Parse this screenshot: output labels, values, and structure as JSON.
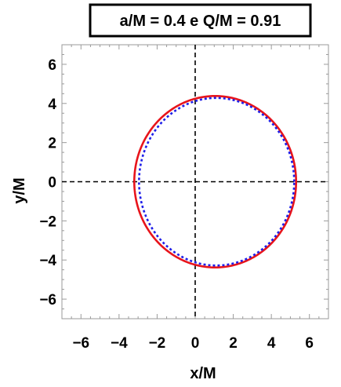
{
  "chart_data": {
    "type": "line",
    "title": "a/M = 0.4 e Q/M = 0.91",
    "xlabel": "x/M",
    "ylabel": "y/M",
    "xlim": [
      -7,
      7
    ],
    "ylim": [
      -7,
      7
    ],
    "x_ticks": [
      -6,
      -4,
      -2,
      0,
      2,
      4,
      6
    ],
    "y_ticks": [
      -6,
      -4,
      -2,
      0,
      2,
      4,
      6
    ],
    "x_tick_labels": [
      "−6",
      "−4",
      "−2",
      "0",
      "2",
      "4",
      "6"
    ],
    "y_tick_labels": [
      "−6",
      "−4",
      "−2",
      "0",
      "2",
      "4",
      "6"
    ],
    "reference_lines": [
      {
        "axis": "x",
        "value": 0,
        "style": "dashed",
        "color": "#000000"
      },
      {
        "axis": "y",
        "value": 0,
        "style": "dashed",
        "color": "#000000"
      }
    ],
    "series": [
      {
        "style": "solid",
        "color": "#e8141b",
        "shape": "closed curve",
        "center": [
          1.05,
          0
        ],
        "x_range": [
          -3.2,
          5.3
        ],
        "y_range": [
          -4.38,
          4.38
        ]
      },
      {
        "style": "dotted",
        "color": "#1f1fe8",
        "shape": "closed curve",
        "center": [
          1.1,
          0
        ],
        "x_range": [
          -2.95,
          5.2
        ],
        "y_range": [
          -4.28,
          4.28
        ]
      }
    ],
    "grid": false,
    "frame": true
  }
}
